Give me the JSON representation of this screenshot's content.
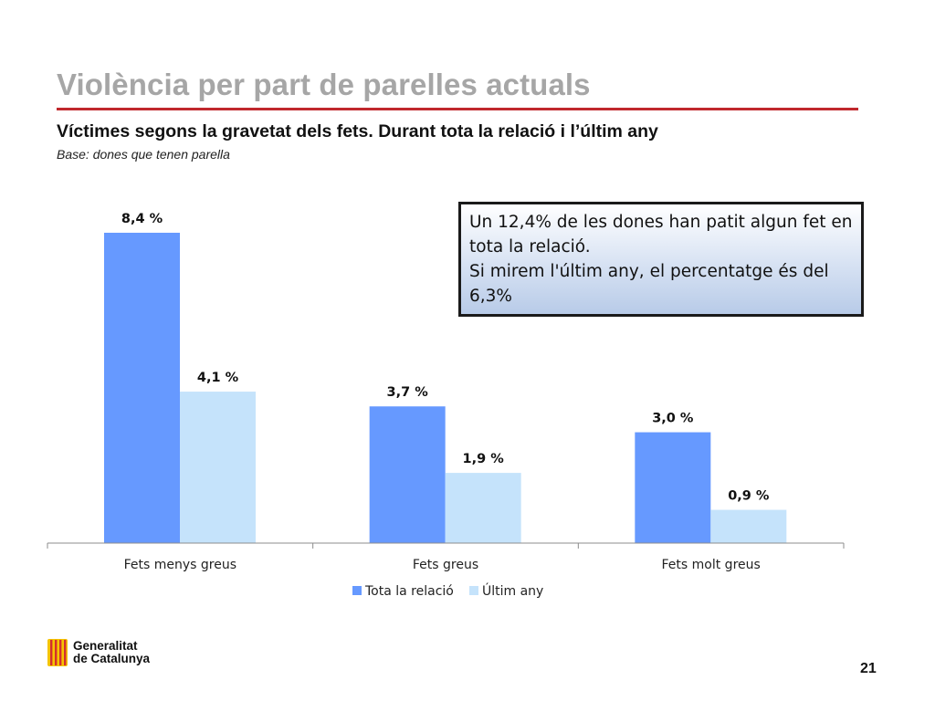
{
  "slide": {
    "title": "Violència per part de parelles actuals",
    "subtitle": "Víctimes segons la gravetat dels fets. Durant tota la relació i l’últim any",
    "base_note": "Base: dones que tenen parella",
    "page_number": "21"
  },
  "callout": {
    "lines": [
      "Un 12,4% de les dones han patit algun fet en",
      "tota la relació.",
      "Si mirem l'últim any, el percentatge és del",
      "6,3%"
    ]
  },
  "logo": {
    "line1": "Generalitat",
    "line2": "de Catalunya"
  },
  "chart_data": {
    "type": "bar",
    "title": "",
    "xlabel": "",
    "ylabel": "",
    "categories": [
      "Fets menys greus",
      "Fets greus",
      "Fets molt greus"
    ],
    "series": [
      {
        "name": "Tota la relació",
        "values": [
          8.4,
          3.7,
          3.0
        ],
        "labels": [
          "8,4 %",
          "3,7 %",
          "3,0 %"
        ],
        "color": "#6699ff"
      },
      {
        "name": "Últim any",
        "values": [
          4.1,
          1.9,
          0.9
        ],
        "labels": [
          "4,1 %",
          "1,9 %",
          "0,9 %"
        ],
        "color": "#c5e3fb"
      }
    ],
    "ylim": [
      0,
      8.4
    ],
    "grid": false,
    "legend": "bottom"
  },
  "colors": {
    "accent_rule": "#c0282d",
    "title_gray": "#a6a6a6",
    "logo_red": "#d32f2f",
    "logo_yellow": "#f5c400"
  }
}
